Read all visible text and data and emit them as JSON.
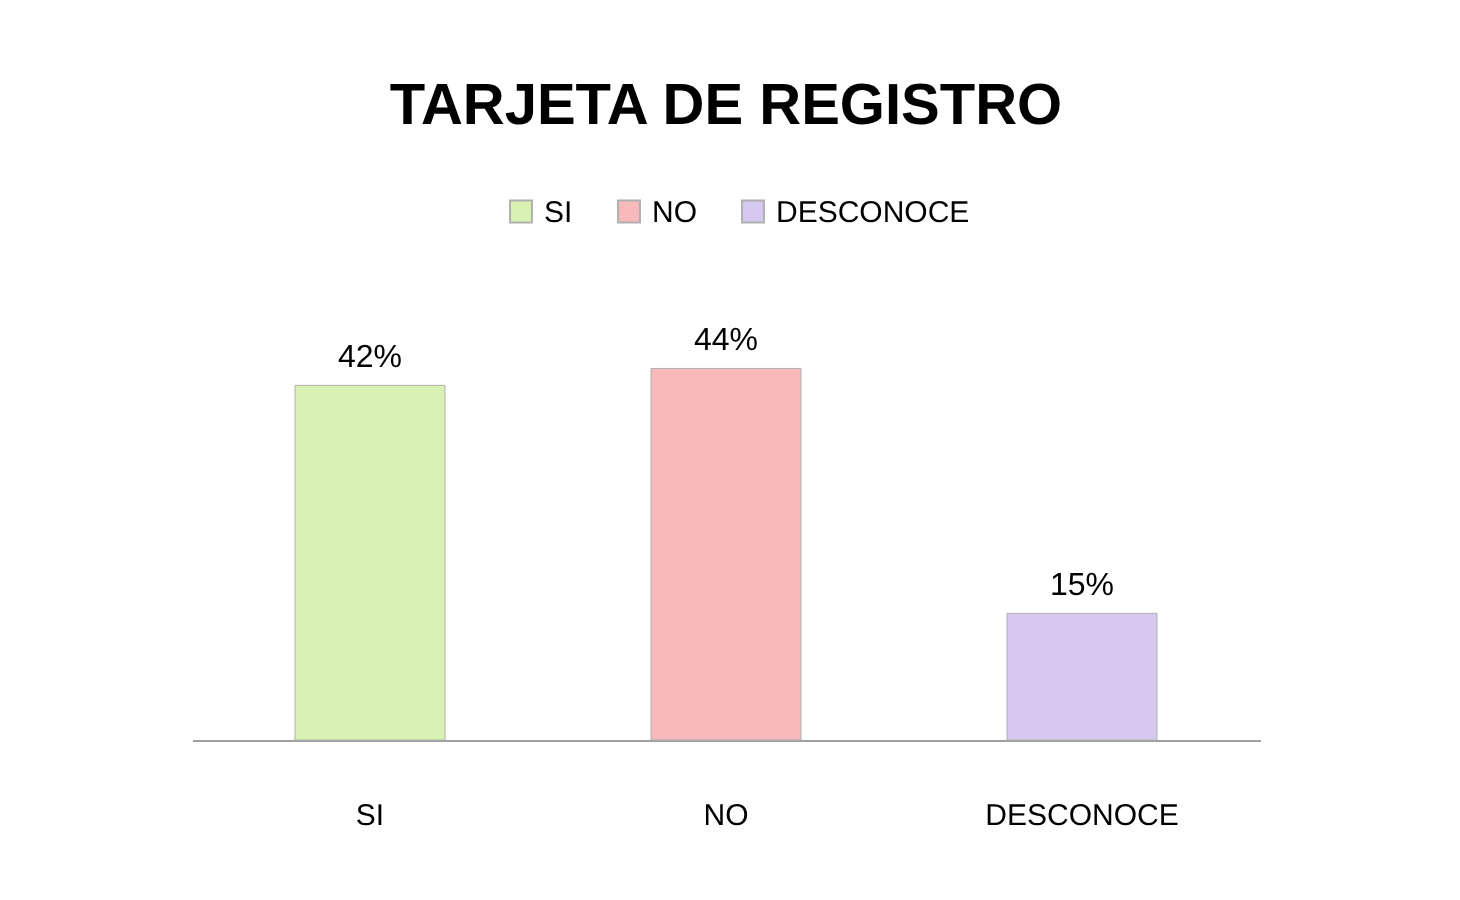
{
  "chart_data": {
    "type": "bar",
    "title": "TARJETA DE REGISTRO",
    "categories": [
      "SI",
      "NO",
      "DESCONOCE"
    ],
    "series": [
      {
        "name": "SI",
        "color": "#d9f2b4",
        "values": [
          42,
          null,
          null
        ],
        "value_labels": [
          "42%",
          null,
          null
        ]
      },
      {
        "name": "NO",
        "color": "#f7b9b9",
        "values": [
          null,
          44,
          null
        ],
        "value_labels": [
          null,
          "44%",
          null
        ]
      },
      {
        "name": "DESCONOCE",
        "color": "#d6c9f0",
        "values": [
          null,
          null,
          15
        ],
        "value_labels": [
          null,
          null,
          "15%"
        ]
      }
    ],
    "legend": "top",
    "grid": false
  }
}
